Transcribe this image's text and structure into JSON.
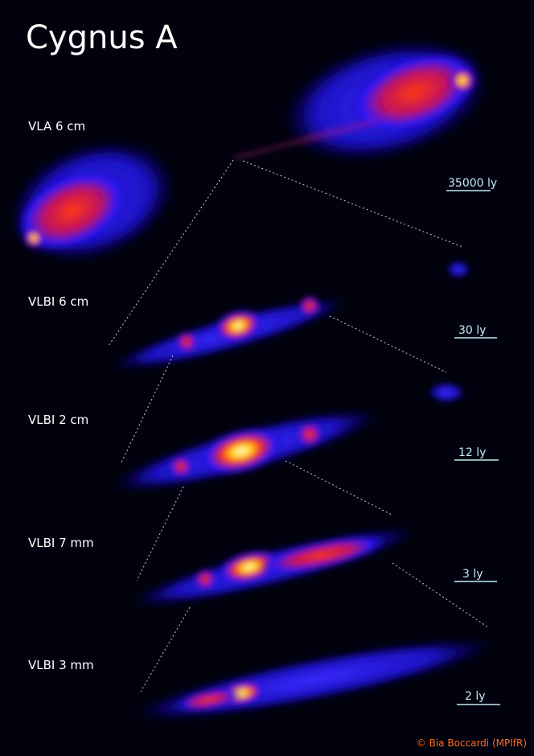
{
  "title": "Cygnus A",
  "panels": [
    {
      "label": "VLA 6 cm",
      "scale": "35000 ly"
    },
    {
      "label": "VLBI 6 cm",
      "scale": "30 ly"
    },
    {
      "label": "VLBI 2 cm",
      "scale": "12 ly"
    },
    {
      "label": "VLBI 7 mm",
      "scale": "3 ly"
    },
    {
      "label": "VLBI 3 mm",
      "scale": "2 ly"
    }
  ],
  "credit": "© Bia Boccardi (MPIfR)"
}
